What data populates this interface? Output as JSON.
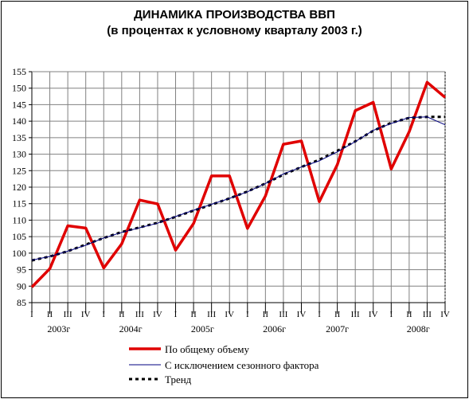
{
  "chart_data": {
    "type": "line",
    "title": "ДИНАМИКА ПРОИЗВОДСТВА ВВП",
    "subtitle": "(в процентах к условному кварталу 2003 г.)",
    "quarter_labels": [
      "I",
      "II",
      "III",
      "IV",
      "I",
      "II",
      "III",
      "IV",
      "I",
      "II",
      "III",
      "IV",
      "I",
      "II",
      "III",
      "IV",
      "I",
      "II",
      "III",
      "IV",
      "I",
      "II",
      "III",
      "IV"
    ],
    "year_labels": [
      "2003г",
      "2004г",
      "2005г",
      "2006г",
      "2007г",
      "2008г"
    ],
    "ylim": [
      85,
      155
    ],
    "yticks": [
      85,
      90,
      95,
      100,
      105,
      110,
      115,
      120,
      125,
      130,
      135,
      140,
      145,
      150,
      155
    ],
    "grid": true,
    "legend_position": "bottom",
    "series": [
      {
        "name": "По общему объему",
        "color": "#e00000",
        "style": "solid-thick",
        "values": [
          89.7,
          95.3,
          108.3,
          107.6,
          95.5,
          102.8,
          116.1,
          114.9,
          100.9,
          109.0,
          123.4,
          123.4,
          107.5,
          117.3,
          133.0,
          134.0,
          115.6,
          126.8,
          143.2,
          145.7,
          125.5,
          136.8,
          151.8,
          147.2
        ]
      },
      {
        "name": "С исключением сезонного фактора",
        "color": "#000080",
        "style": "solid-thin",
        "values": [
          97.9,
          99.0,
          100.6,
          102.4,
          104.6,
          106.3,
          107.7,
          109.1,
          111.1,
          113.0,
          114.8,
          116.6,
          118.6,
          121.1,
          124.0,
          126.1,
          128.0,
          130.7,
          133.8,
          137.2,
          139.3,
          141.1,
          141.3,
          138.9
        ]
      },
      {
        "name": "Тренд",
        "color": "#000000",
        "style": "dashed-thick",
        "values": [
          97.8,
          99.0,
          100.6,
          102.6,
          104.6,
          106.4,
          107.8,
          109.2,
          111.0,
          112.9,
          114.7,
          116.6,
          118.7,
          121.1,
          123.8,
          126.1,
          128.3,
          131.0,
          133.9,
          137.1,
          139.5,
          141.0,
          141.3,
          141.3
        ]
      }
    ]
  }
}
